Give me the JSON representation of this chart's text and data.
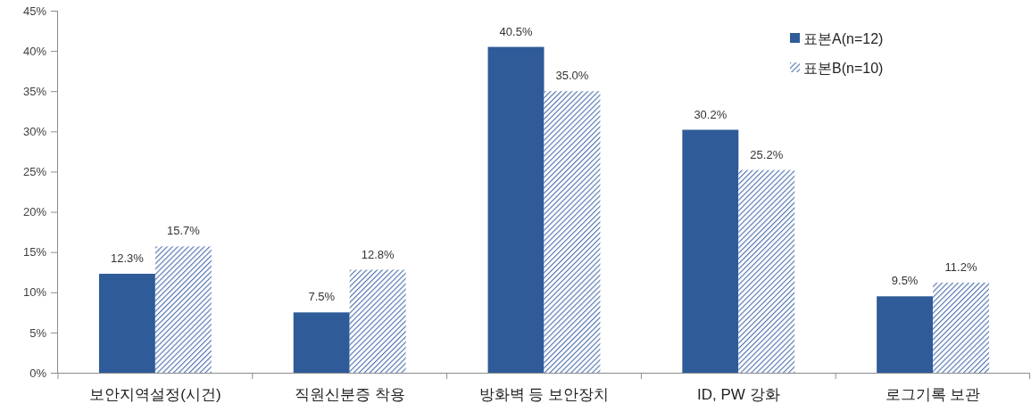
{
  "chart_data": {
    "type": "bar",
    "categories": [
      "보안지역설정(시건)",
      "직원신분증 착용",
      "방화벽 등 보안장치",
      "ID, PW 강화",
      "로그기록 보관"
    ],
    "series": [
      {
        "name": "표본A(n=12)",
        "color": "#2f5b98",
        "values": [
          12.3,
          7.5,
          40.5,
          30.2,
          9.5
        ],
        "value_labels": [
          "12.3%",
          "7.5%",
          "40.5%",
          "30.2%",
          "9.5%"
        ]
      },
      {
        "name": "표본B(n=10)",
        "color": "#4a6fae",
        "values": [
          15.7,
          12.8,
          35.0,
          25.2,
          11.2
        ],
        "value_labels": [
          "15.7%",
          "12.8%",
          "35.0%",
          "25.2%",
          "11.2%"
        ]
      }
    ],
    "ylim": [
      0,
      45
    ],
    "yticks": [
      {
        "value": 0,
        "label": "0%"
      },
      {
        "value": 5,
        "label": "5%"
      },
      {
        "value": 10,
        "label": "10%"
      },
      {
        "value": 15,
        "label": "15%"
      },
      {
        "value": 20,
        "label": "20%"
      },
      {
        "value": 25,
        "label": "25%"
      },
      {
        "value": 30,
        "label": "30%"
      },
      {
        "value": 35,
        "label": "35%"
      },
      {
        "value": 40,
        "label": "40%"
      },
      {
        "value": 45,
        "label": "45%"
      }
    ],
    "grid": false,
    "legend": "top right"
  }
}
